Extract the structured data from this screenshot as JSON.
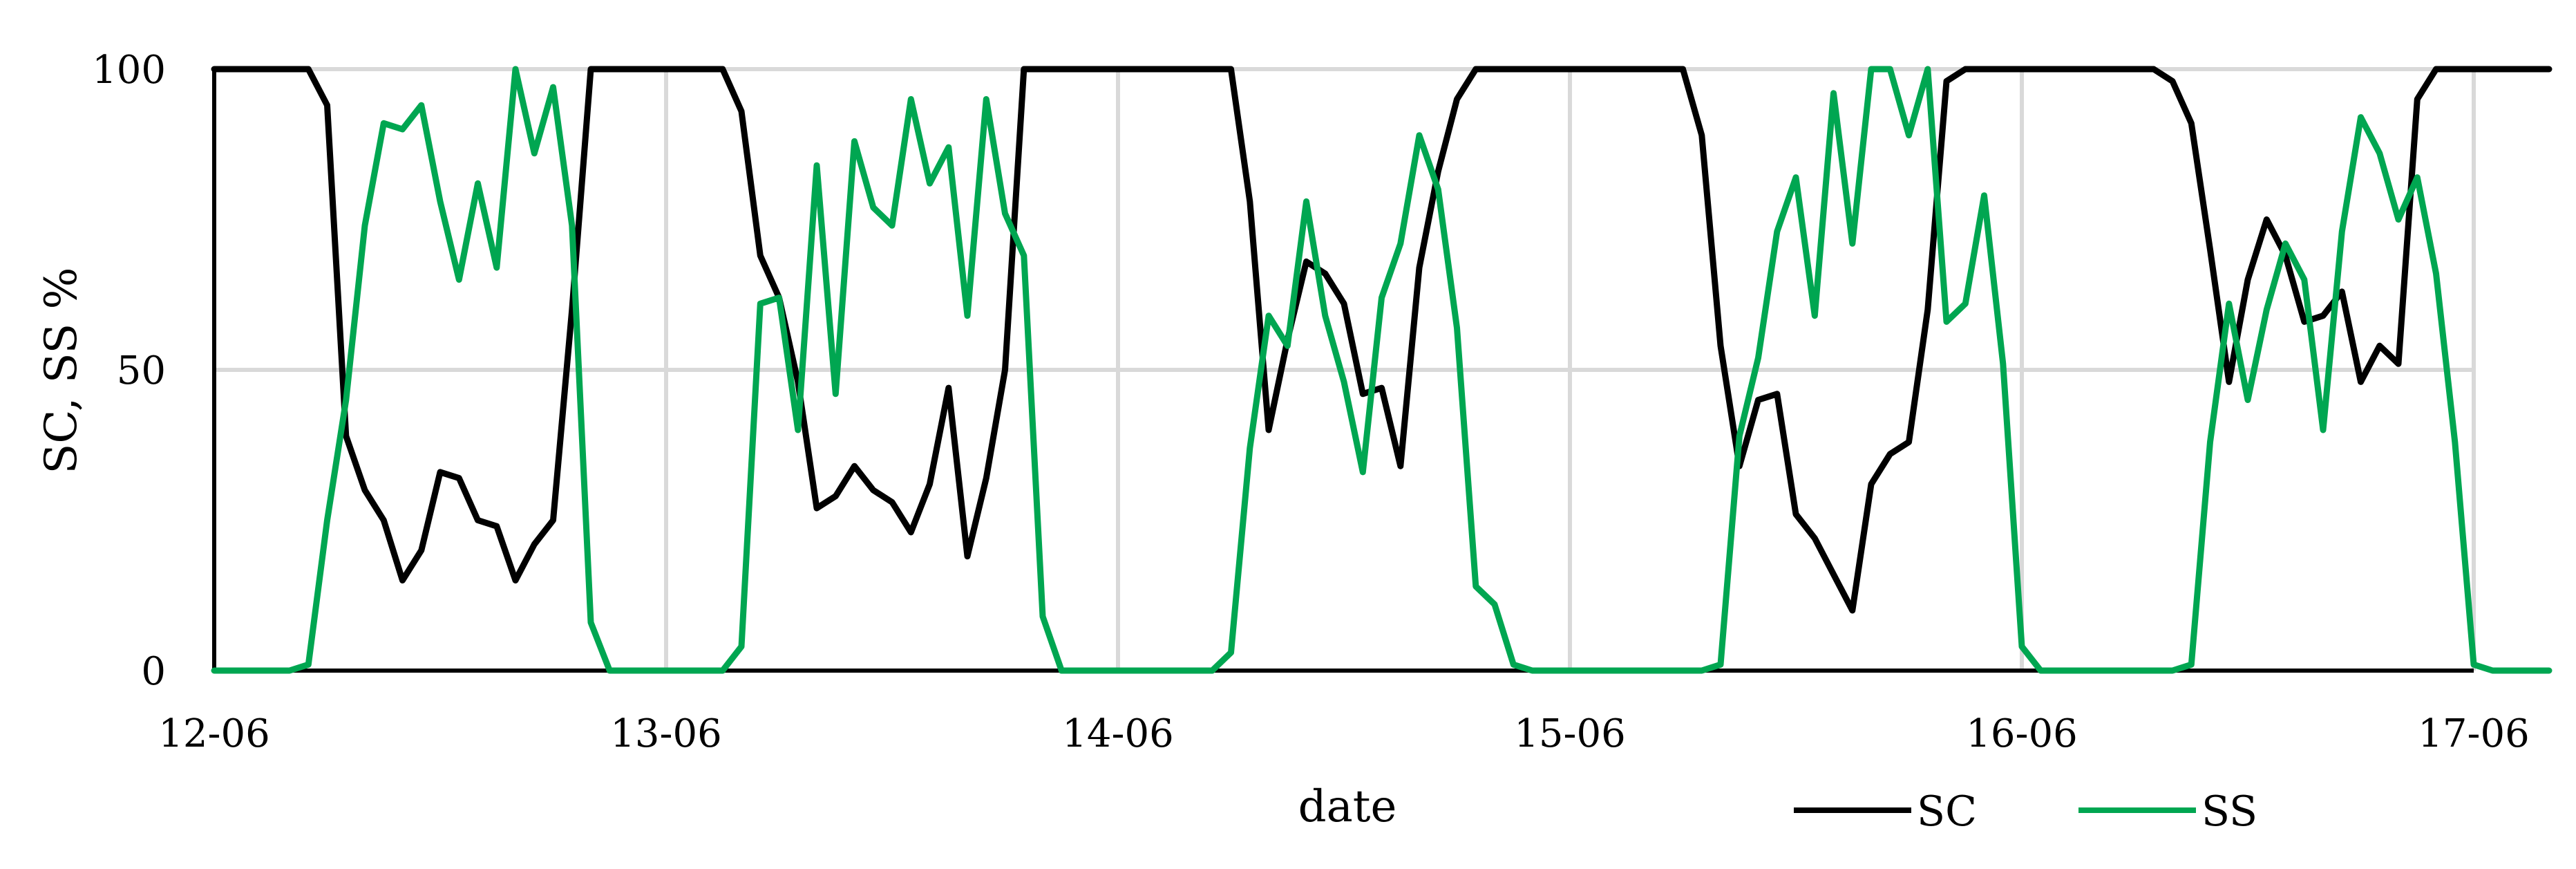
{
  "chart_data": {
    "type": "line",
    "title": "",
    "xlabel": "date",
    "ylabel": "SC, SS %",
    "x_ticks": [
      "12-06",
      "13-06",
      "14-06",
      "15-06",
      "16-06",
      "17-06"
    ],
    "y_ticks": [
      0,
      50,
      100
    ],
    "ylim": [
      0,
      100
    ],
    "grid": true,
    "legend_position": "bottom-right",
    "x_start": "12-06 00:00",
    "x_step_hours": 1,
    "series": [
      {
        "name": "SC",
        "color": "#000000",
        "values": [
          100,
          100,
          100,
          100,
          100,
          100,
          94,
          39,
          30,
          25,
          15,
          20,
          33,
          32,
          25,
          24,
          15,
          21,
          25,
          60,
          100,
          100,
          100,
          100,
          100,
          100,
          100,
          100,
          93,
          69,
          62,
          48,
          27,
          29,
          34,
          30,
          28,
          23,
          31,
          47,
          19,
          32,
          50,
          100,
          100,
          100,
          100,
          100,
          100,
          100,
          100,
          100,
          100,
          100,
          100,
          78,
          40,
          55,
          68,
          66,
          61,
          46,
          47,
          34,
          67,
          83,
          95,
          100,
          100,
          100,
          100,
          100,
          100,
          100,
          100,
          100,
          100,
          100,
          100,
          89,
          54,
          34,
          45,
          46,
          26,
          22,
          16,
          10,
          31,
          36,
          38,
          60,
          98,
          100,
          100,
          100,
          100,
          100,
          100,
          100,
          100,
          100,
          100,
          100,
          98,
          91,
          70,
          48,
          65,
          75,
          69,
          58,
          59,
          63,
          48,
          54,
          51,
          95,
          100,
          100,
          100,
          100,
          100,
          100,
          100
        ]
      },
      {
        "name": "SS",
        "color": "#00a651",
        "values": [
          0,
          0,
          0,
          0,
          0,
          1,
          25,
          45,
          74,
          91,
          90,
          94,
          78,
          65,
          81,
          67,
          100,
          86,
          97,
          74,
          8,
          0,
          0,
          0,
          0,
          0,
          0,
          0,
          4,
          61,
          62,
          40,
          84,
          46,
          88,
          77,
          74,
          95,
          81,
          87,
          59,
          95,
          76,
          69,
          9,
          0,
          0,
          0,
          0,
          0,
          0,
          0,
          0,
          0,
          3,
          37,
          59,
          54,
          78,
          59,
          48,
          33,
          62,
          71,
          89,
          80,
          57,
          14,
          11,
          1,
          0,
          0,
          0,
          0,
          0,
          0,
          0,
          0,
          0,
          0,
          1,
          39,
          52,
          73,
          82,
          59,
          96,
          71,
          100,
          100,
          89,
          100,
          58,
          61,
          79,
          51,
          4,
          0,
          0,
          0,
          0,
          0,
          0,
          0,
          0,
          1,
          38,
          61,
          45,
          60,
          71,
          65,
          40,
          73,
          92,
          86,
          75,
          82,
          66,
          38,
          1,
          0,
          0,
          0,
          0
        ]
      }
    ]
  }
}
